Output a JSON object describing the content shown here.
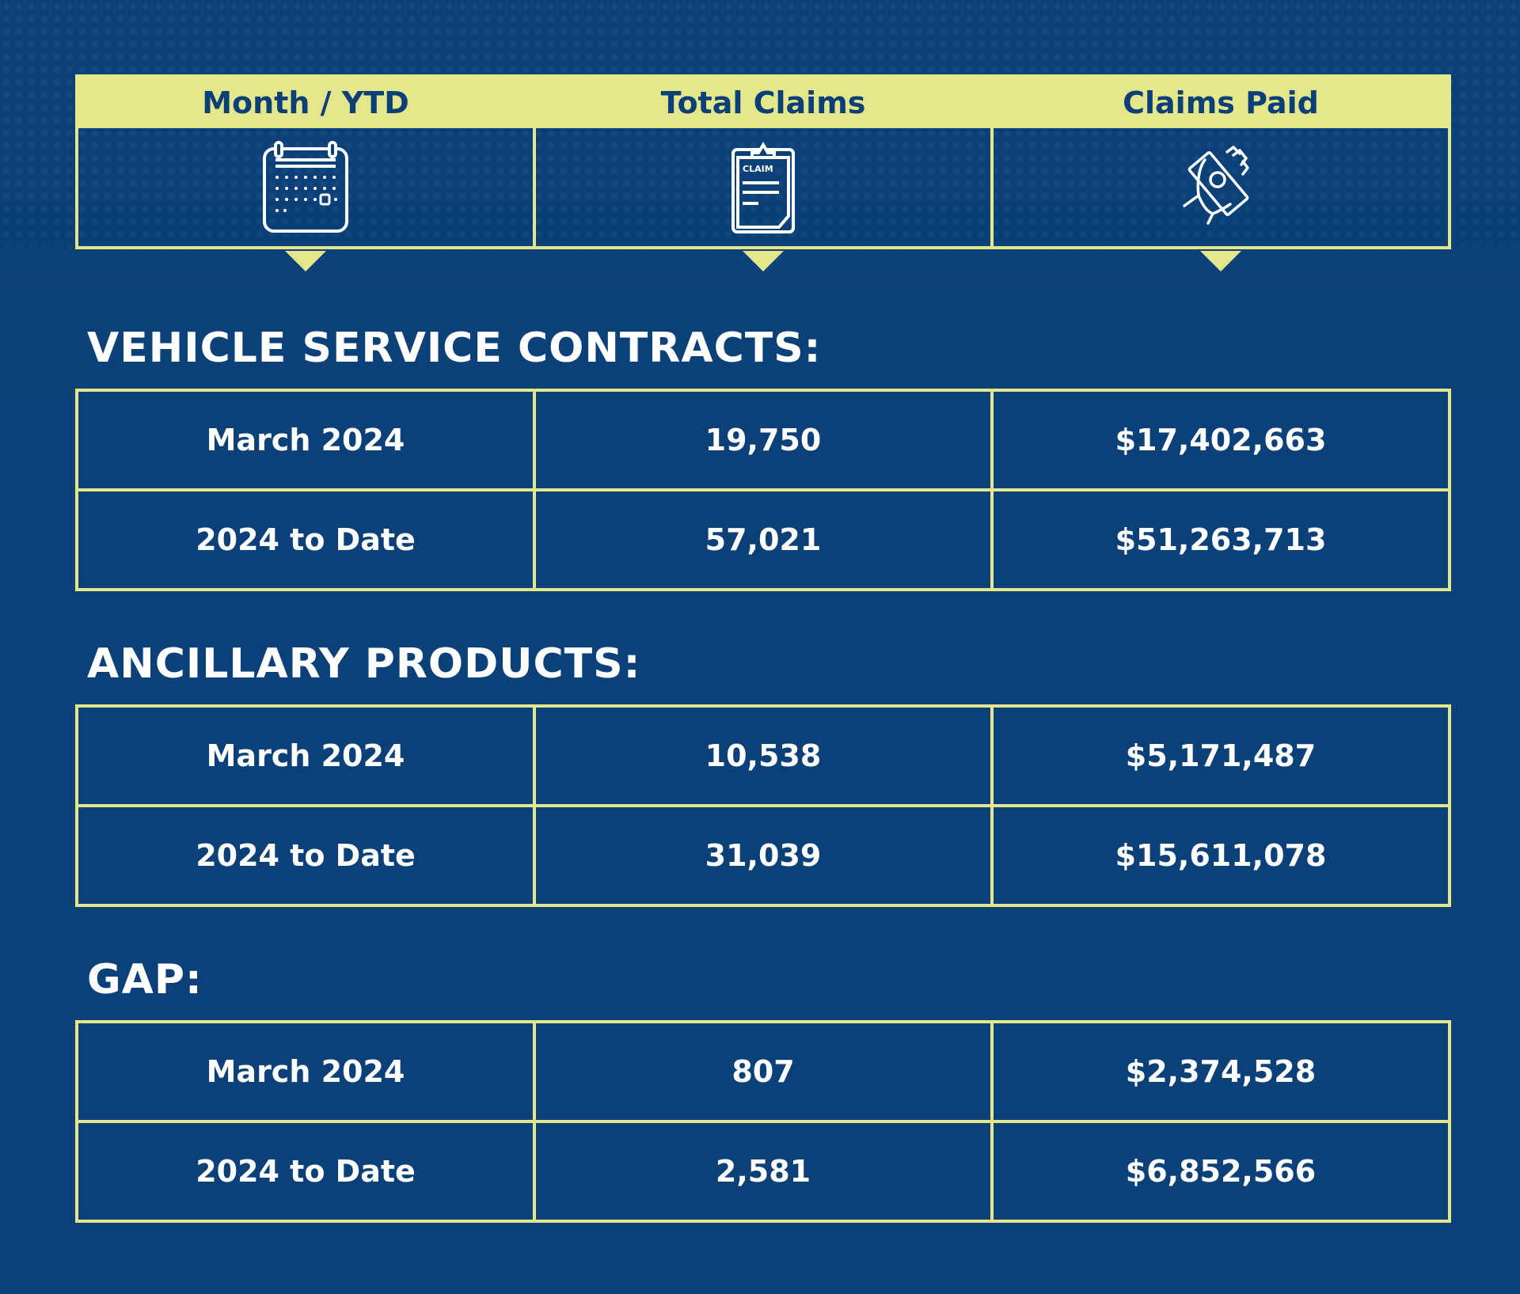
{
  "header": {
    "columns": [
      {
        "label": "Month / YTD",
        "icon": "calendar-icon"
      },
      {
        "label": "Total Claims",
        "icon": "claim-clipboard-icon",
        "icon_text": "CLAIM"
      },
      {
        "label": "Claims Paid",
        "icon": "hand-money-icon"
      }
    ]
  },
  "colors": {
    "background": "#0b4178",
    "accent": "#e3e68a",
    "text": "#ffffff"
  },
  "sections": [
    {
      "title": "VEHICLE SERVICE CONTRACTS:",
      "rows": [
        {
          "period": "March 2024",
          "total_claims": "19,750",
          "claims_paid": "$17,402,663"
        },
        {
          "period": "2024 to Date",
          "total_claims": "57,021",
          "claims_paid": "$51,263,713"
        }
      ]
    },
    {
      "title": "ANCILLARY PRODUCTS:",
      "rows": [
        {
          "period": "March 2024",
          "total_claims": "10,538",
          "claims_paid": "$5,171,487"
        },
        {
          "period": "2024 to Date",
          "total_claims": "31,039",
          "claims_paid": "$15,611,078"
        }
      ]
    },
    {
      "title": "GAP:",
      "rows": [
        {
          "period": "March 2024",
          "total_claims": "807",
          "claims_paid": "$2,374,528"
        },
        {
          "period": "2024 to Date",
          "total_claims": "2,581",
          "claims_paid": "$6,852,566"
        }
      ]
    }
  ]
}
